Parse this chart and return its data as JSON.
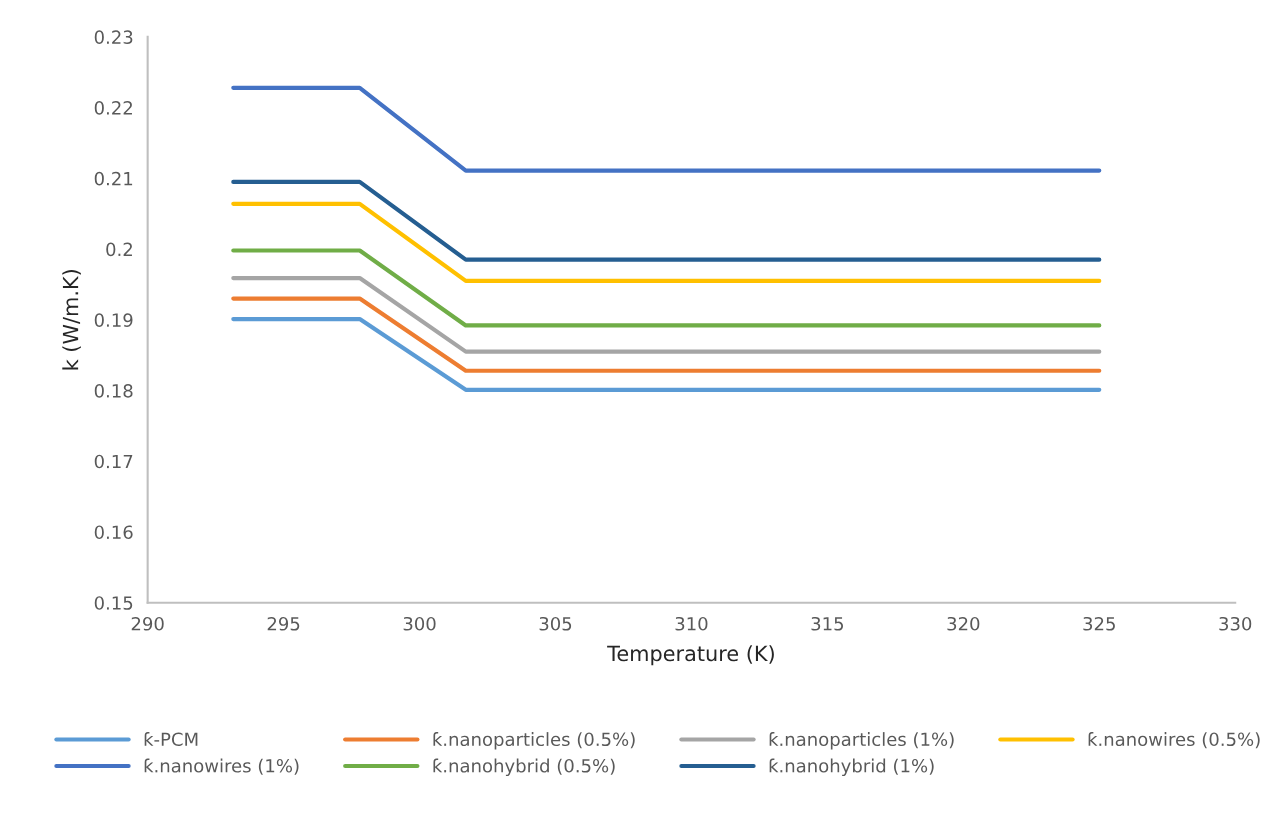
{
  "chart_data": {
    "type": "line",
    "xlabel": "Temperature (K)",
    "ylabel": "k (W/m.K)",
    "x": [
      293.15,
      297.8,
      301.7,
      325
    ],
    "xlim": [
      290,
      330
    ],
    "xticks": [
      290,
      295,
      300,
      305,
      310,
      315,
      320,
      325,
      330
    ],
    "ylim": [
      0.15,
      0.23
    ],
    "yticks": [
      0.15,
      0.16,
      0.17,
      0.18,
      0.19,
      0.2,
      0.21,
      0.22,
      0.23
    ],
    "grid": false,
    "legend": "bottom",
    "marker": "none",
    "line_style": "solid",
    "series": [
      {
        "name": "ƙ-PCM",
        "color": "#5b9bd5",
        "values": [
          0.1901,
          0.1901,
          0.1801,
          0.1801
        ]
      },
      {
        "name": "ƙ.nanoparticles (0.5%)",
        "color": "#ed7d31",
        "values": [
          0.193,
          0.193,
          0.1828,
          0.1828
        ]
      },
      {
        "name": "ƙ.nanoparticles (1%)",
        "color": "#a5a5a5",
        "values": [
          0.1959,
          0.1959,
          0.1855,
          0.1855
        ]
      },
      {
        "name": "ƙ.nanowires (0.5%)",
        "color": "#ffc000",
        "values": [
          0.2064,
          0.2064,
          0.1955,
          0.1955
        ]
      },
      {
        "name": "ƙ.nanowires (1%)",
        "color": "#4472c4",
        "values": [
          0.2228,
          0.2228,
          0.2111,
          0.2111
        ]
      },
      {
        "name": "ƙ.nanohybrid (0.5%)",
        "color": "#70ad47",
        "values": [
          0.1998,
          0.1998,
          0.1892,
          0.1892
        ]
      },
      {
        "name": "ƙ.nanohybrid (1%)",
        "color": "#255e91",
        "values": [
          0.2095,
          0.2095,
          0.1985,
          0.1985
        ]
      }
    ]
  }
}
